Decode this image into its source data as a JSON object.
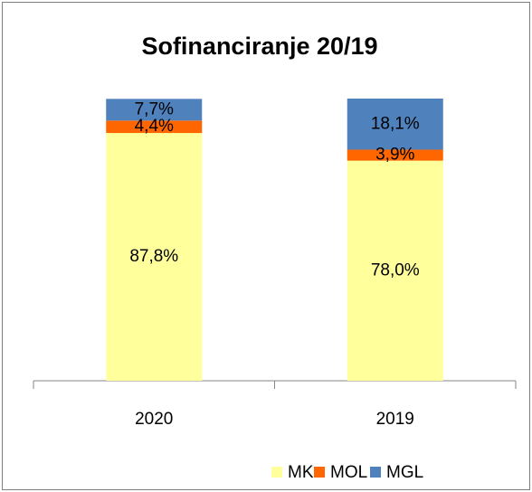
{
  "chart_data": {
    "type": "stacked_bar",
    "title": "Sofinanciranje 20/19",
    "categories": [
      "2020",
      "2019"
    ],
    "series": [
      {
        "name": "MK",
        "color": "#ffff9c",
        "values": [
          87.8,
          78.0
        ],
        "value_labels": [
          "87,8%",
          "78,0%"
        ]
      },
      {
        "name": "MOL",
        "color": "#ff6600",
        "values": [
          4.4,
          3.9
        ],
        "value_labels": [
          "4,4%",
          "3,9%"
        ]
      },
      {
        "name": "MGL",
        "color": "#4f81bd",
        "values": [
          7.7,
          18.1
        ],
        "value_labels": [
          "7,7%",
          "18,1%"
        ]
      }
    ],
    "ylim": [
      0,
      100
    ],
    "legend": "bottom"
  }
}
